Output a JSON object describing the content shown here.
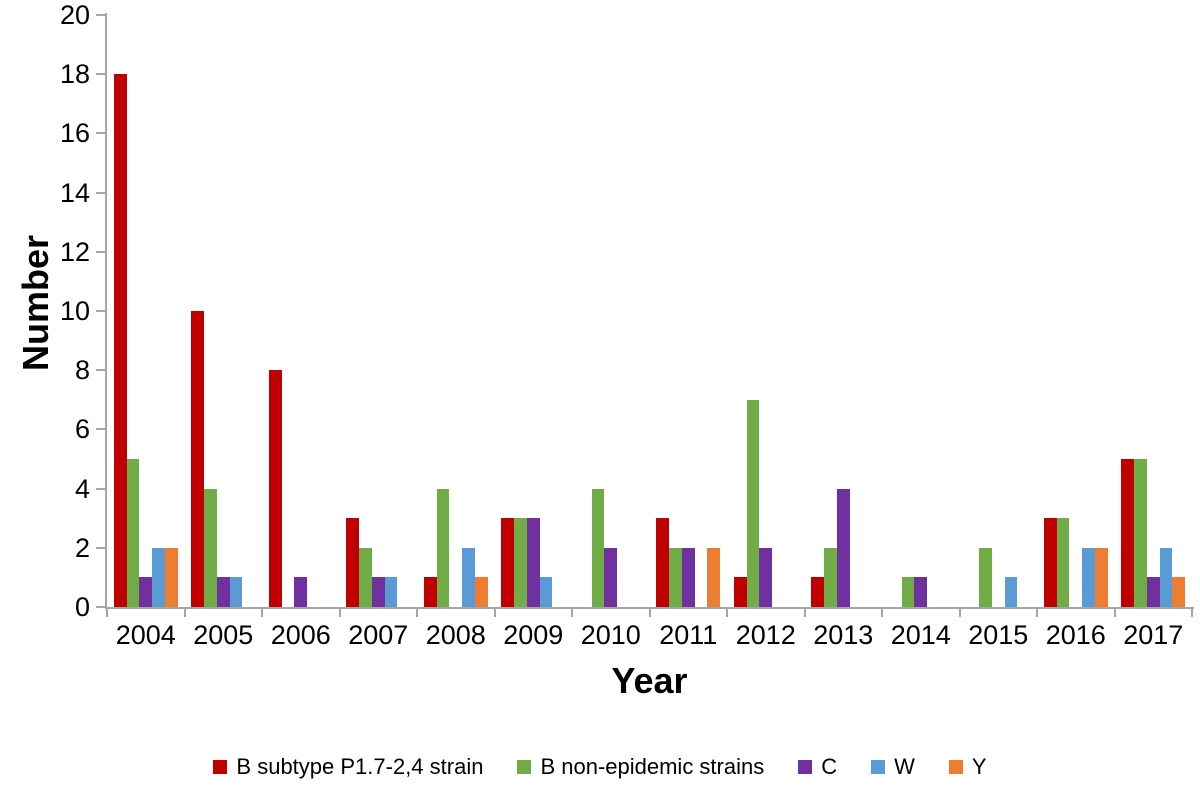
{
  "chart_data": {
    "type": "bar",
    "title": "",
    "xlabel": "Year",
    "ylabel": "Number",
    "ylim": [
      0,
      20
    ],
    "yticks": [
      0,
      2,
      4,
      6,
      8,
      10,
      12,
      14,
      16,
      18,
      20
    ],
    "grid": false,
    "legend_position": "bottom",
    "axis_color": "#A6A6A6",
    "categories": [
      "2004",
      "2005",
      "2006",
      "2007",
      "2008",
      "2009",
      "2010",
      "2011",
      "2012",
      "2013",
      "2014",
      "2015",
      "2016",
      "2017"
    ],
    "series": [
      {
        "name": "B subtype P1.7-2,4 strain",
        "color": "#C00000",
        "values": [
          18,
          10,
          8,
          3,
          1,
          3,
          0,
          3,
          1,
          1,
          0,
          0,
          3,
          5
        ]
      },
      {
        "name": "B non-epidemic strains",
        "color": "#70AD47",
        "values": [
          5,
          4,
          0,
          2,
          4,
          3,
          4,
          2,
          7,
          2,
          1,
          2,
          3,
          5
        ]
      },
      {
        "name": "C",
        "color": "#7030A0",
        "values": [
          1,
          1,
          1,
          1,
          0,
          3,
          2,
          2,
          2,
          4,
          1,
          0,
          0,
          1
        ]
      },
      {
        "name": "W",
        "color": "#5B9BD5",
        "values": [
          2,
          1,
          0,
          1,
          2,
          1,
          0,
          0,
          0,
          0,
          0,
          1,
          2,
          2
        ]
      },
      {
        "name": "Y",
        "color": "#ED7D31",
        "values": [
          2,
          0,
          0,
          0,
          1,
          0,
          0,
          2,
          0,
          0,
          0,
          0,
          2,
          1
        ]
      }
    ]
  }
}
